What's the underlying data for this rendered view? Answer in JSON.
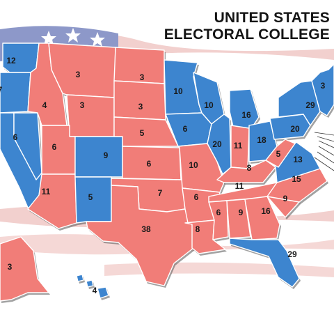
{
  "title": {
    "line1": "UNITED STATES",
    "line2": "ELECTORAL COLLEGE"
  },
  "colors": {
    "democrat": "#3d85cf",
    "republican": "#f17d78",
    "flag_red": "#d9534f",
    "flag_blue": "#3b4fa0",
    "border": "#ffffff"
  },
  "states": [
    {
      "id": "WA",
      "party": "D",
      "votes": "12"
    },
    {
      "id": "OR",
      "party": "D",
      "votes": "7"
    },
    {
      "id": "CA",
      "party": "D",
      "votes": ""
    },
    {
      "id": "NV",
      "party": "D",
      "votes": "6"
    },
    {
      "id": "ID",
      "party": "R",
      "votes": "4"
    },
    {
      "id": "MT",
      "party": "R",
      "votes": "3"
    },
    {
      "id": "WY",
      "party": "R",
      "votes": "3"
    },
    {
      "id": "UT",
      "party": "R",
      "votes": "6"
    },
    {
      "id": "AZ",
      "party": "R",
      "votes": "11"
    },
    {
      "id": "CO",
      "party": "D",
      "votes": "9"
    },
    {
      "id": "NM",
      "party": "D",
      "votes": "5"
    },
    {
      "id": "ND",
      "party": "R",
      "votes": "3"
    },
    {
      "id": "SD",
      "party": "R",
      "votes": "3"
    },
    {
      "id": "NE",
      "party": "R",
      "votes": "5"
    },
    {
      "id": "KS",
      "party": "R",
      "votes": "6"
    },
    {
      "id": "OK",
      "party": "R",
      "votes": "7"
    },
    {
      "id": "TX",
      "party": "R",
      "votes": "38"
    },
    {
      "id": "MN",
      "party": "D",
      "votes": "10"
    },
    {
      "id": "IA",
      "party": "D",
      "votes": "6"
    },
    {
      "id": "MO",
      "party": "R",
      "votes": "10"
    },
    {
      "id": "AR",
      "party": "R",
      "votes": "6"
    },
    {
      "id": "LA",
      "party": "R",
      "votes": "8"
    },
    {
      "id": "WI",
      "party": "D",
      "votes": "10"
    },
    {
      "id": "IL",
      "party": "D",
      "votes": "20"
    },
    {
      "id": "MI",
      "party": "D",
      "votes": "16"
    },
    {
      "id": "IN",
      "party": "R",
      "votes": "11"
    },
    {
      "id": "OH",
      "party": "D",
      "votes": "18"
    },
    {
      "id": "KY",
      "party": "R",
      "votes": "8"
    },
    {
      "id": "TN",
      "party": "R",
      "votes": "11"
    },
    {
      "id": "MS",
      "party": "R",
      "votes": "6"
    },
    {
      "id": "AL",
      "party": "R",
      "votes": "9"
    },
    {
      "id": "GA",
      "party": "R",
      "votes": "16"
    },
    {
      "id": "FL",
      "party": "D",
      "votes": "29"
    },
    {
      "id": "SC",
      "party": "R",
      "votes": "9"
    },
    {
      "id": "NC",
      "party": "R",
      "votes": "15"
    },
    {
      "id": "VA",
      "party": "D",
      "votes": "13"
    },
    {
      "id": "WV",
      "party": "R",
      "votes": "5"
    },
    {
      "id": "PA",
      "party": "D",
      "votes": "20"
    },
    {
      "id": "NY",
      "party": "D",
      "votes": "29"
    },
    {
      "id": "NE_REGION",
      "party": "D",
      "votes": "3"
    },
    {
      "id": "AK",
      "party": "R",
      "votes": "3"
    },
    {
      "id": "HI",
      "party": "D",
      "votes": "4"
    }
  ]
}
